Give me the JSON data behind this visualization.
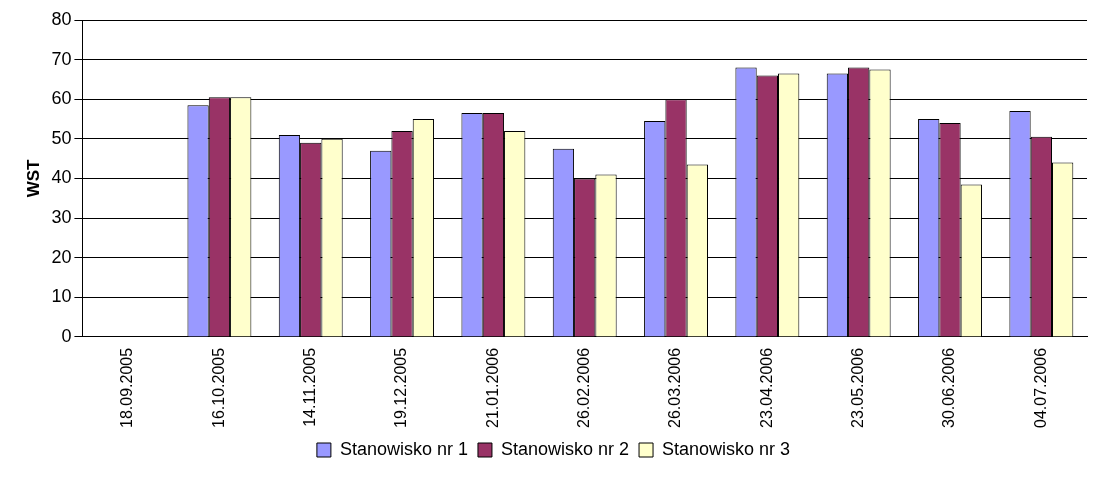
{
  "chart_data": {
    "type": "bar",
    "ylabel": "WST",
    "categories": [
      "18.09.2005",
      "16.10.2005",
      "14.11.2005",
      "19.12.2005",
      "21.01.2006",
      "26.02.2006",
      "26.03.2006",
      "23.04.2006",
      "23.05.2006",
      "30.06.2006",
      "04.07.2006"
    ],
    "series": [
      {
        "name": "Stanowisko nr 1",
        "color": "#9999ff",
        "values": [
          null,
          58.5,
          51,
          47,
          56.5,
          47.5,
          54.5,
          68,
          66.5,
          55,
          57
        ]
      },
      {
        "name": "Stanowisko nr 2",
        "color": "#993366",
        "values": [
          null,
          60.5,
          49,
          52,
          56.5,
          40,
          60,
          66,
          68,
          54,
          50.5
        ]
      },
      {
        "name": "Stanowisko nr 3",
        "color": "#ffffcc",
        "values": [
          null,
          60.5,
          50,
          55,
          52,
          41,
          43.5,
          66.5,
          67.5,
          38.5,
          44
        ]
      }
    ],
    "ylim": [
      0,
      80
    ],
    "yticks": [
      0,
      10,
      20,
      30,
      40,
      50,
      60,
      70,
      80
    ],
    "grid": "y",
    "legend": "bottom"
  }
}
